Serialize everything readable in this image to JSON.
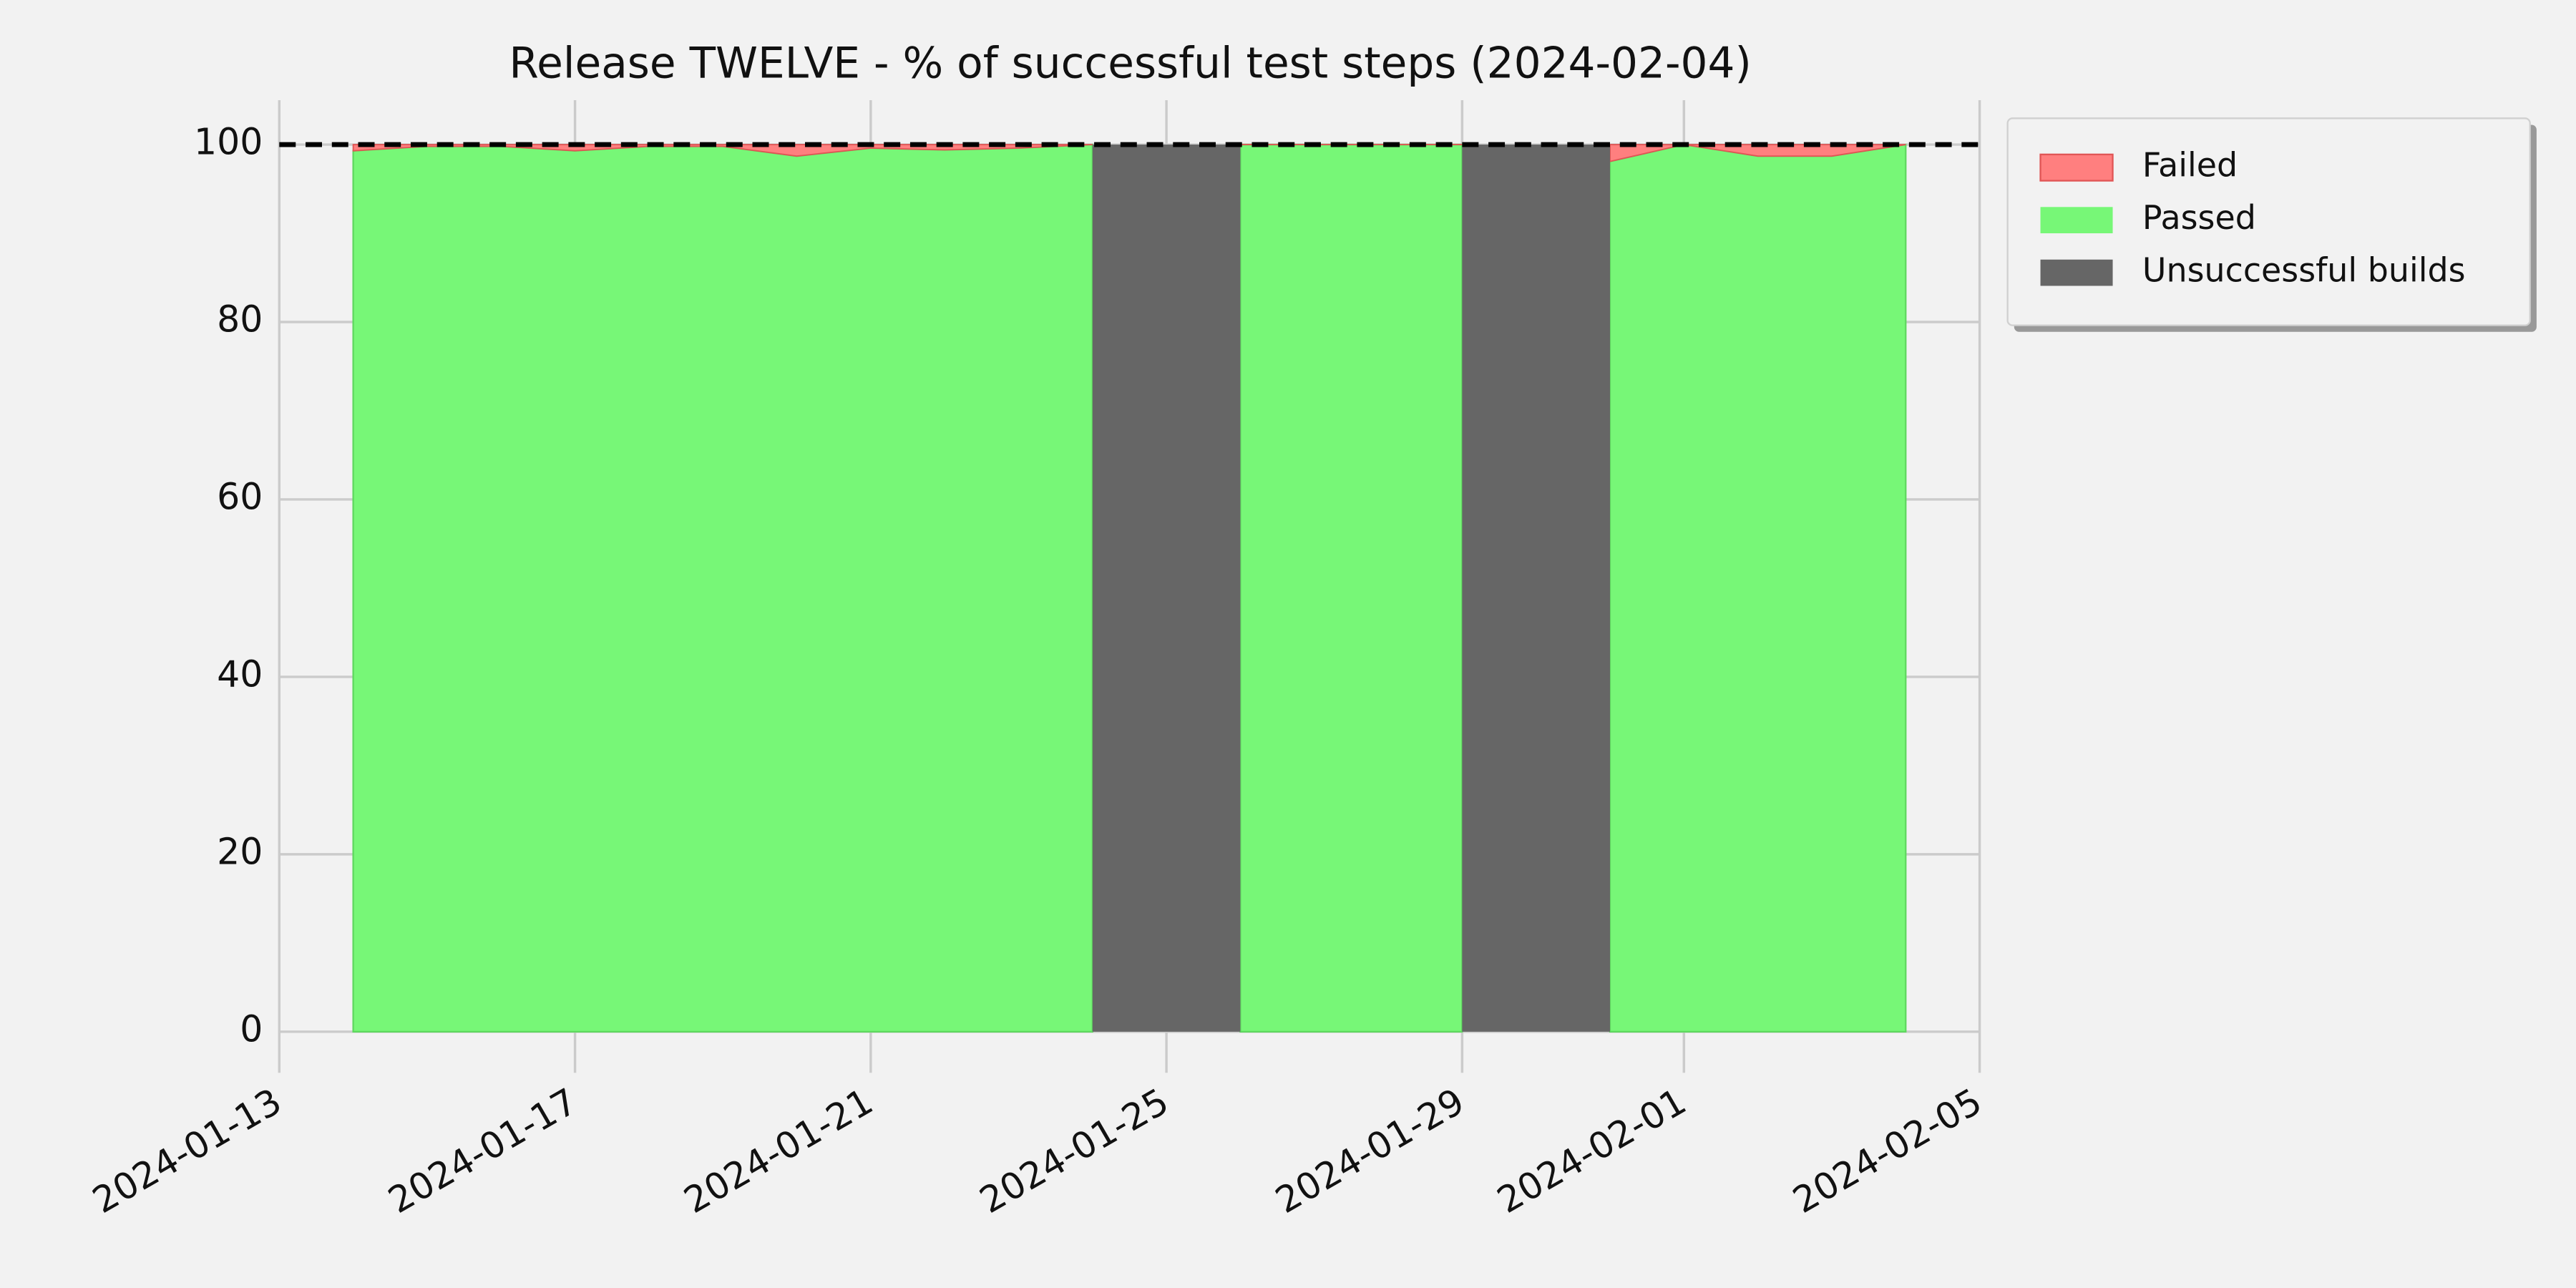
{
  "chart_data": {
    "type": "stacked_area",
    "title": "Release TWELVE - % of successful test steps (2024-02-04)",
    "x": [
      "2024-01-14",
      "2024-01-15",
      "2024-01-16",
      "2024-01-17",
      "2024-01-18",
      "2024-01-19",
      "2024-01-20",
      "2024-01-21",
      "2024-01-22",
      "2024-01-23",
      "2024-01-24",
      "2024-01-25",
      "2024-01-26",
      "2024-01-27",
      "2024-01-28",
      "2024-01-29",
      "2024-01-30",
      "2024-01-31",
      "2024-02-01",
      "2024-02-02",
      "2024-02-03",
      "2024-02-04"
    ],
    "series": [
      {
        "name": "Failed",
        "color": "#ff7f7f",
        "values": [
          0.7,
          0.2,
          0.2,
          0.7,
          0.2,
          0.2,
          1.3,
          0.4,
          0.6,
          0.4,
          0,
          null,
          0,
          0,
          0,
          0,
          null,
          1.9,
          0,
          1.3,
          1.3,
          0
        ]
      },
      {
        "name": "Passed",
        "color": "#77f777",
        "values": [
          99.3,
          99.8,
          99.8,
          99.3,
          99.8,
          99.8,
          98.7,
          99.6,
          99.4,
          99.6,
          100,
          null,
          100,
          100,
          100,
          100,
          null,
          98.1,
          100,
          98.7,
          98.7,
          100
        ]
      },
      {
        "name": "Unsuccessful builds",
        "color": "#666666",
        "values": [
          null,
          null,
          null,
          null,
          null,
          null,
          null,
          null,
          null,
          null,
          null,
          100,
          null,
          null,
          null,
          null,
          100,
          null,
          null,
          null,
          null,
          null
        ]
      }
    ],
    "reference_line": 100,
    "xlim": [
      "2024-01-13",
      "2024-02-05"
    ],
    "xticks": [
      "2024-01-13",
      "2024-01-17",
      "2024-01-21",
      "2024-01-25",
      "2024-01-29",
      "2024-02-01",
      "2024-02-05"
    ],
    "ylim": [
      0,
      105
    ],
    "yticks": [
      0,
      20,
      40,
      60,
      80,
      100
    ],
    "grid": true,
    "legend": "outside upper right"
  }
}
